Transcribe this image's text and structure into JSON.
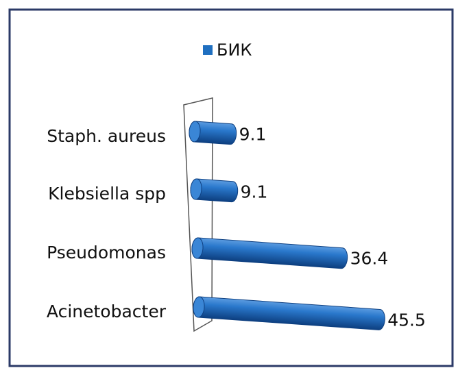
{
  "chart_data": {
    "type": "bar",
    "orientation": "horizontal",
    "categories": [
      "Staph. aureus",
      "Klebsiella spp",
      "Pseudomonas",
      "Acinetobacter"
    ],
    "series": [
      {
        "name": "БИК",
        "color": "#1f6fc0",
        "values": [
          9.1,
          9.1,
          36.4,
          45.5
        ]
      }
    ],
    "xlim": [
      0,
      60
    ],
    "legend": "top"
  }
}
